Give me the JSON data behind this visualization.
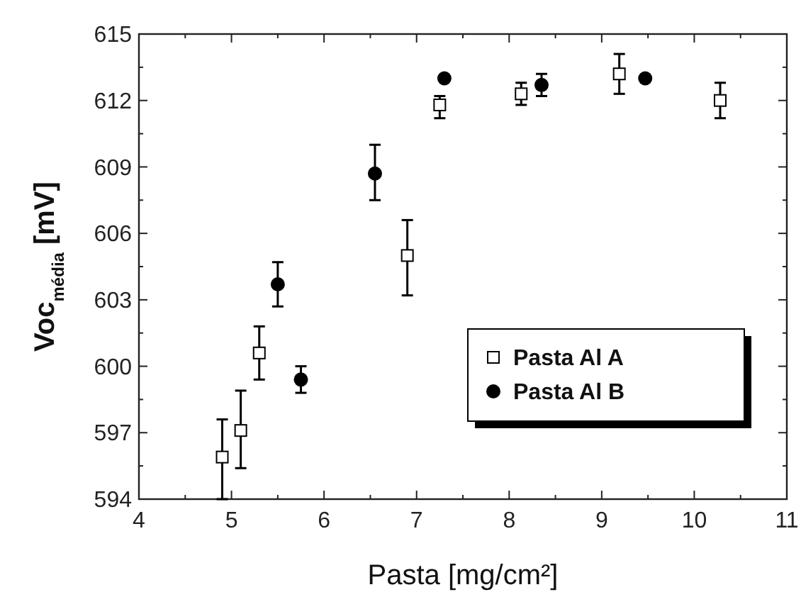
{
  "chart_data": {
    "type": "scatter",
    "xlabel": "Pasta  [mg/cm²]",
    "ylabel": "Voc$_{média}$  [mV]",
    "xlim": [
      4,
      11
    ],
    "xticks": [
      4,
      5,
      6,
      7,
      8,
      9,
      10,
      11
    ],
    "ylim": [
      594,
      615
    ],
    "yticks": [
      594,
      597,
      600,
      603,
      606,
      609,
      612,
      615
    ],
    "legend": "right",
    "grid": false,
    "series": [
      {
        "name": "Pasta Al A",
        "color": "#000000",
        "marker": "square",
        "x": [
          4.9,
          5.1,
          5.3,
          6.9,
          7.25,
          8.13,
          9.19,
          10.28
        ],
        "values": [
          595.9,
          597.1,
          600.6,
          605.0,
          611.8,
          612.3,
          613.2,
          612.0
        ],
        "errors": [
          [
            594.0,
            597.6
          ],
          [
            595.4,
            598.9
          ],
          [
            599.4,
            601.8
          ],
          [
            603.2,
            606.6
          ],
          [
            611.2,
            612.2
          ],
          [
            611.8,
            612.8
          ],
          [
            612.3,
            614.1
          ],
          [
            611.2,
            612.8
          ]
        ]
      },
      {
        "name": "Pasta Al B",
        "color": "#000000",
        "marker": "circle",
        "x": [
          5.5,
          5.75,
          6.55,
          7.3,
          8.35,
          9.47
        ],
        "values": [
          603.7,
          599.4,
          608.7,
          613.0,
          612.7,
          613.0
        ],
        "errors": [
          [
            602.7,
            604.7
          ],
          [
            598.8,
            600.0
          ],
          [
            607.5,
            610.0
          ],
          null,
          [
            612.2,
            613.2
          ],
          null
        ]
      }
    ]
  }
}
